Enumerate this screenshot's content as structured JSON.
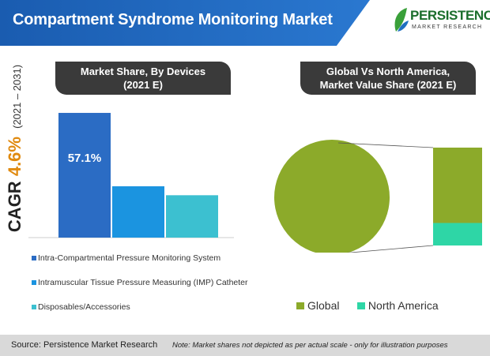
{
  "header": {
    "title": "Compartment Syndrome Monitoring Market"
  },
  "logo": {
    "word": "PERSISTENCE",
    "sub": "MARKET RESEARCH"
  },
  "cagr": {
    "label": "CAGR",
    "value": "4.6%",
    "range": "(2021 – 2031)"
  },
  "colors": {
    "banner": "#1f66bf",
    "bar1": "#2b6cc4",
    "bar2": "#1b94e0",
    "bar3": "#3cc0d0",
    "global": "#8caa2a",
    "north_america": "#2ed6a6",
    "pill": "#3a3a3a"
  },
  "chart_data": [
    {
      "type": "bar",
      "title_line1": "Market Share, By Devices",
      "title_line2": "(2021 E)",
      "categories": [
        "Intra-Compartmental Pressure Monitoring System",
        "Intramuscular Tissue Pressure Measuring (IMP) Catheter",
        "Disposables/Accessories"
      ],
      "values": [
        57.1,
        23.5,
        19.4
      ],
      "data_labels": [
        "57.1%",
        "",
        ""
      ],
      "ylim": [
        0,
        60
      ],
      "grid": false,
      "legend": "bottom"
    },
    {
      "type": "pie",
      "title_line1": "Global Vs North America,",
      "title_line2": "Market Value Share (2021 E)",
      "categories": [
        "Global",
        "North America"
      ],
      "values": [
        100,
        23
      ],
      "legend": "bottom"
    }
  ],
  "footer": {
    "source": "Source: Persistence Market Research",
    "note": "Note: Market shares not depicted as per actual scale - only for illustration purposes"
  }
}
